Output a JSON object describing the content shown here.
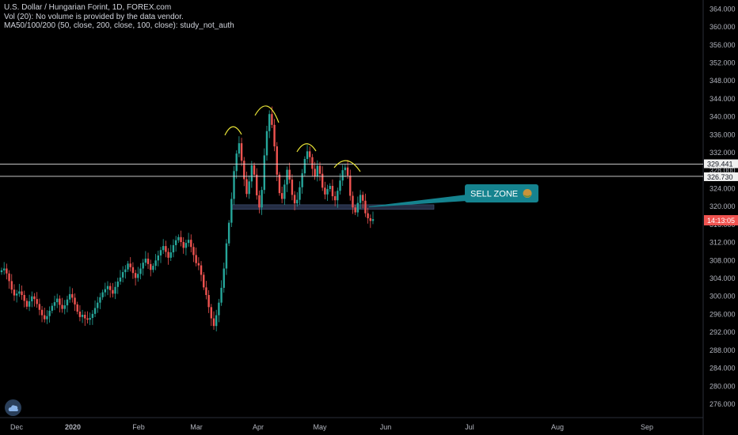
{
  "header": {
    "symbol_line": "U.S. Dollar / Hungarian Forint, 1D, FOREX.com",
    "volume_line": "Vol (20): No volume is provided by the data vendor.",
    "ma_line": "MA50/100/200 (50, close, 200, close, 100, close): study_not_auth"
  },
  "price_tags": {
    "upper_line": "329.441",
    "lower_line": "326.730",
    "current_timer": "14:13:05"
  },
  "annotation": {
    "label": "SELL ZONE",
    "emoji": "🤮"
  },
  "colors": {
    "background": "#000000",
    "up": "#26a69a",
    "down": "#ef5350",
    "callout": "#15838f",
    "zone": "#2a3550",
    "arcs": "#e8e337"
  },
  "chart_data": {
    "type": "candlestick",
    "title": "U.S. Dollar / Hungarian Forint, 1D, FOREX.com",
    "y_ticks": [
      "364.000",
      "360.000",
      "356.000",
      "352.000",
      "348.000",
      "344.000",
      "340.000",
      "336.000",
      "332.000",
      "328.000",
      "324.000",
      "320.000",
      "316.000",
      "312.000",
      "308.000",
      "304.000",
      "300.000",
      "296.000",
      "292.000",
      "288.000",
      "284.000",
      "280.000",
      "276.000"
    ],
    "ylim": [
      273,
      366
    ],
    "x_ticks": [
      "Dec",
      "2020",
      "Feb",
      "Mar",
      "Apr",
      "May",
      "Jun",
      "Jul",
      "Aug",
      "Sep"
    ],
    "horizontal_lines": [
      329.441,
      326.73
    ],
    "zone": {
      "from": 319.4,
      "to": 320.4
    },
    "close_series": [
      305.8,
      306.2,
      305.1,
      303.4,
      301.5,
      300.2,
      300.6,
      301.1,
      300.3,
      299.0,
      297.7,
      298.9,
      300.0,
      299.4,
      298.3,
      297.0,
      295.8,
      294.9,
      295.6,
      296.8,
      297.9,
      298.7,
      299.5,
      298.1,
      297.2,
      298.0,
      299.3,
      300.5,
      299.7,
      298.2,
      296.6,
      295.4,
      295.9,
      295.1,
      294.8,
      295.2,
      296.1,
      297.4,
      298.6,
      299.8,
      300.9,
      301.6,
      302.3,
      301.4,
      300.6,
      302.1,
      303.3,
      304.2,
      305.4,
      306.0,
      307.3,
      306.5,
      305.2,
      304.1,
      305.0,
      306.2,
      307.5,
      308.4,
      307.2,
      305.9,
      306.8,
      308.0,
      309.1,
      310.3,
      311.2,
      309.9,
      308.6,
      309.8,
      311.4,
      312.5,
      313.2,
      312.1,
      310.8,
      311.9,
      312.6,
      311.0,
      309.2,
      307.4,
      306.9,
      304.8,
      302.0,
      300.3,
      297.6,
      295.1,
      293.4,
      295.8,
      298.6,
      301.9,
      306.2,
      311.8,
      316.4,
      321.7,
      327.9,
      331.8,
      334.1,
      330.2,
      326.1,
      322.8,
      325.6,
      329.2,
      327.1,
      322.5,
      319.8,
      323.7,
      331.4,
      336.8,
      340.6,
      338.2,
      333.4,
      327.1,
      323.0,
      321.7,
      324.9,
      328.2,
      326.0,
      322.6,
      320.7,
      321.5,
      324.3,
      327.4,
      330.6,
      332.3,
      331.0,
      328.4,
      326.8,
      329.1,
      327.3,
      324.2,
      322.7,
      323.9,
      324.6,
      322.3,
      321.4,
      323.5,
      325.8,
      328.1,
      328.7,
      326.9,
      322.4,
      319.8,
      318.7,
      320.8,
      322.6,
      321.3,
      318.5,
      317.4,
      316.8,
      317.2
    ]
  }
}
